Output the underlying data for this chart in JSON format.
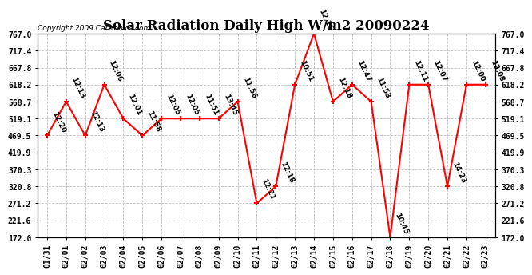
{
  "title": "Solar Radiation Daily High W/m2 20090224",
  "copyright": "Copyright 2009 Cartronics.com",
  "dates": [
    "01/31",
    "02/01",
    "02/02",
    "02/03",
    "02/04",
    "02/05",
    "02/06",
    "02/07",
    "02/08",
    "02/09",
    "02/10",
    "02/11",
    "02/12",
    "02/13",
    "02/14",
    "02/15",
    "02/16",
    "02/17",
    "02/18",
    "02/19",
    "02/20",
    "02/21",
    "02/22",
    "02/23"
  ],
  "values": [
    469.5,
    568.7,
    469.5,
    618.2,
    519.1,
    469.5,
    519.1,
    519.1,
    519.1,
    519.1,
    568.7,
    271.2,
    320.8,
    618.2,
    767.0,
    568.7,
    618.2,
    568.7,
    172.0,
    618.2,
    618.2,
    320.8,
    618.2,
    618.2
  ],
  "labels": [
    "12:20",
    "12:13",
    "12:13",
    "12:06",
    "12:01",
    "11:58",
    "12:05",
    "12:05",
    "11:51",
    "13:45",
    "11:56",
    "12:21",
    "12:18",
    "10:51",
    "12:16",
    "12:18",
    "12:47",
    "11:53",
    "10:45",
    "12:11",
    "12:07",
    "14:23",
    "12:00",
    "12:08"
  ],
  "ylim": [
    172.0,
    767.0
  ],
  "yticks": [
    172.0,
    221.6,
    271.2,
    320.8,
    370.3,
    419.9,
    469.5,
    519.1,
    568.7,
    618.2,
    667.8,
    717.4,
    767.0
  ],
  "line_color": "#ff0000",
  "bg_color": "#ffffff",
  "grid_color": "#c0c0c0",
  "title_fontsize": 12,
  "label_fontsize": 6.5,
  "tick_fontsize": 7,
  "copyright_fontsize": 6.5
}
